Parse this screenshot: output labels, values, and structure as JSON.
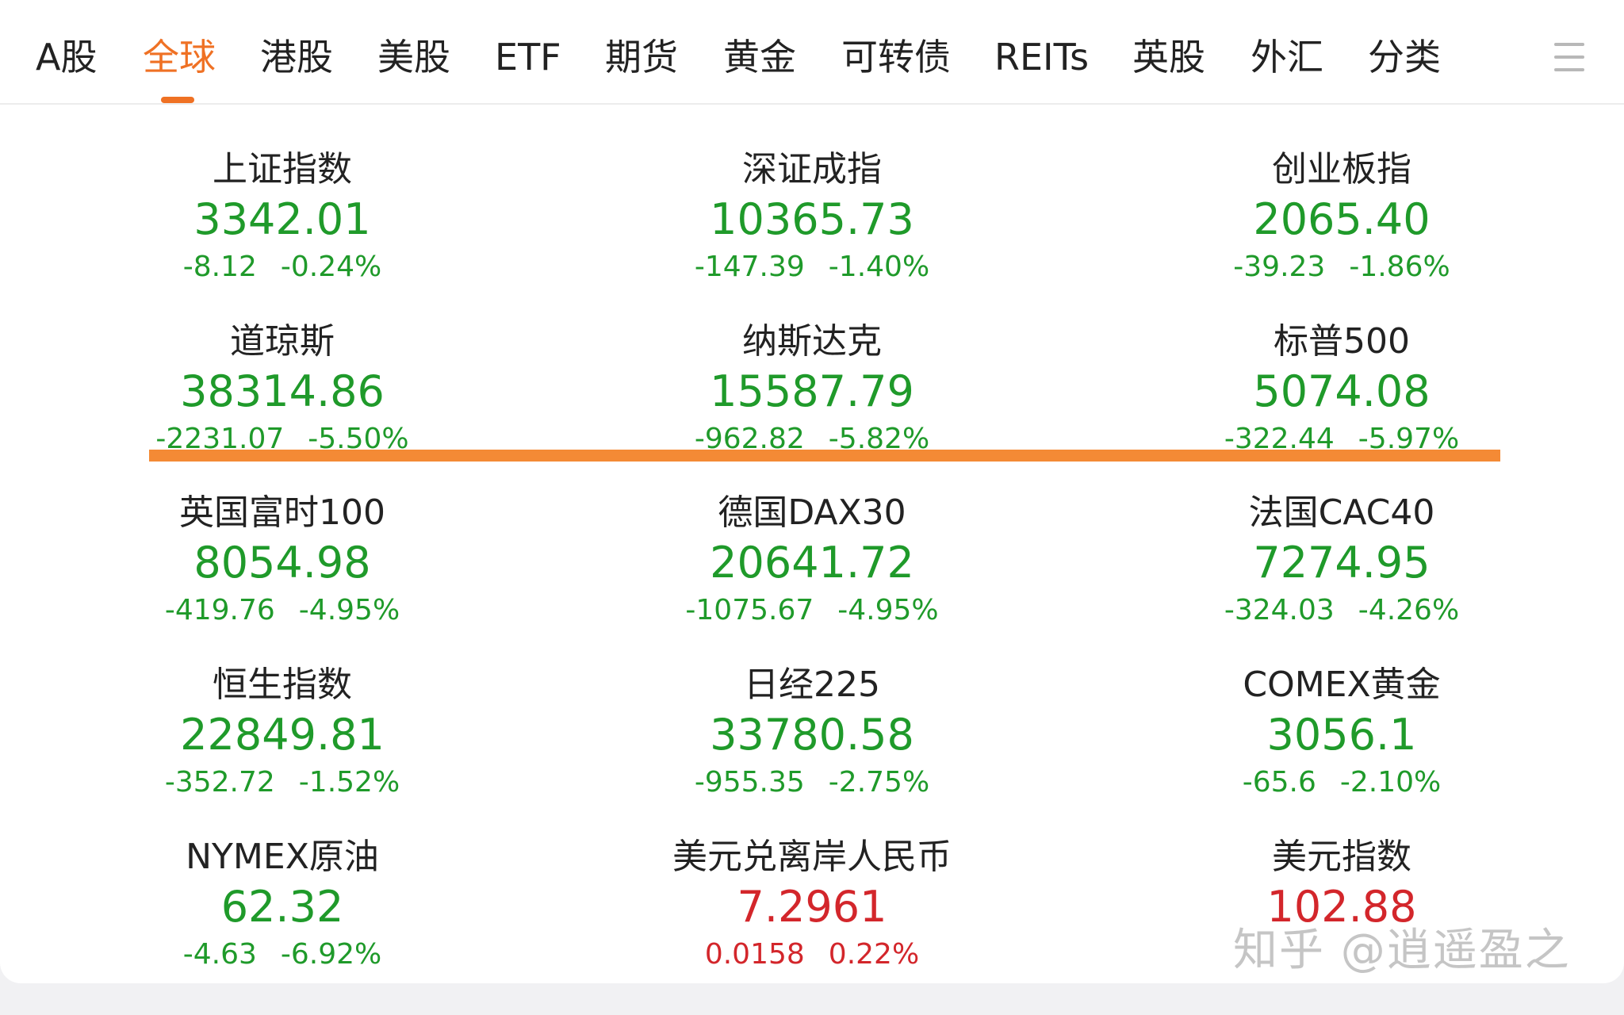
{
  "tabs": [
    {
      "label": "A股",
      "active": false
    },
    {
      "label": "全球",
      "active": true
    },
    {
      "label": "港股",
      "active": false
    },
    {
      "label": "美股",
      "active": false
    },
    {
      "label": "ETF",
      "active": false
    },
    {
      "label": "期货",
      "active": false
    },
    {
      "label": "黄金",
      "active": false
    },
    {
      "label": "可转债",
      "active": false
    },
    {
      "label": "REITs",
      "active": false
    },
    {
      "label": "英股",
      "active": false
    },
    {
      "label": "外汇",
      "active": false
    },
    {
      "label": "分类",
      "active": false
    }
  ],
  "menu_icon": "menu-icon",
  "colors": {
    "accent": "#ef7124",
    "down": "#1f9a2a",
    "up": "#d3262b",
    "highlight": "#f48a35"
  },
  "indices": [
    {
      "name": "上证指数",
      "price": "3342.01",
      "change": "-8.12",
      "percent": "-0.24%",
      "trend": "down"
    },
    {
      "name": "深证成指",
      "price": "10365.73",
      "change": "-147.39",
      "percent": "-1.40%",
      "trend": "down"
    },
    {
      "name": "创业板指",
      "price": "2065.40",
      "change": "-39.23",
      "percent": "-1.86%",
      "trend": "down"
    },
    {
      "name": "道琼斯",
      "price": "38314.86",
      "change": "-2231.07",
      "percent": "-5.50%",
      "trend": "down"
    },
    {
      "name": "纳斯达克",
      "price": "15587.79",
      "change": "-962.82",
      "percent": "-5.82%",
      "trend": "down"
    },
    {
      "name": "标普500",
      "price": "5074.08",
      "change": "-322.44",
      "percent": "-5.97%",
      "trend": "down"
    },
    {
      "name": "英国富时100",
      "price": "8054.98",
      "change": "-419.76",
      "percent": "-4.95%",
      "trend": "down"
    },
    {
      "name": "德国DAX30",
      "price": "20641.72",
      "change": "-1075.67",
      "percent": "-4.95%",
      "trend": "down"
    },
    {
      "name": "法国CAC40",
      "price": "7274.95",
      "change": "-324.03",
      "percent": "-4.26%",
      "trend": "down"
    },
    {
      "name": "恒生指数",
      "price": "22849.81",
      "change": "-352.72",
      "percent": "-1.52%",
      "trend": "down"
    },
    {
      "name": "日经225",
      "price": "33780.58",
      "change": "-955.35",
      "percent": "-2.75%",
      "trend": "down"
    },
    {
      "name": "COMEX黄金",
      "price": "3056.1",
      "change": "-65.6",
      "percent": "-2.10%",
      "trend": "down"
    },
    {
      "name": "NYMEX原油",
      "price": "62.32",
      "change": "-4.63",
      "percent": "-6.92%",
      "trend": "down"
    },
    {
      "name": "美元兑离岸人民币",
      "price": "7.2961",
      "change": "0.0158",
      "percent": "0.22%",
      "trend": "up"
    },
    {
      "name": "美元指数",
      "price": "102.88",
      "change": "",
      "percent": "",
      "trend": "up"
    }
  ],
  "watermark": "知乎 @逍遥盈之"
}
